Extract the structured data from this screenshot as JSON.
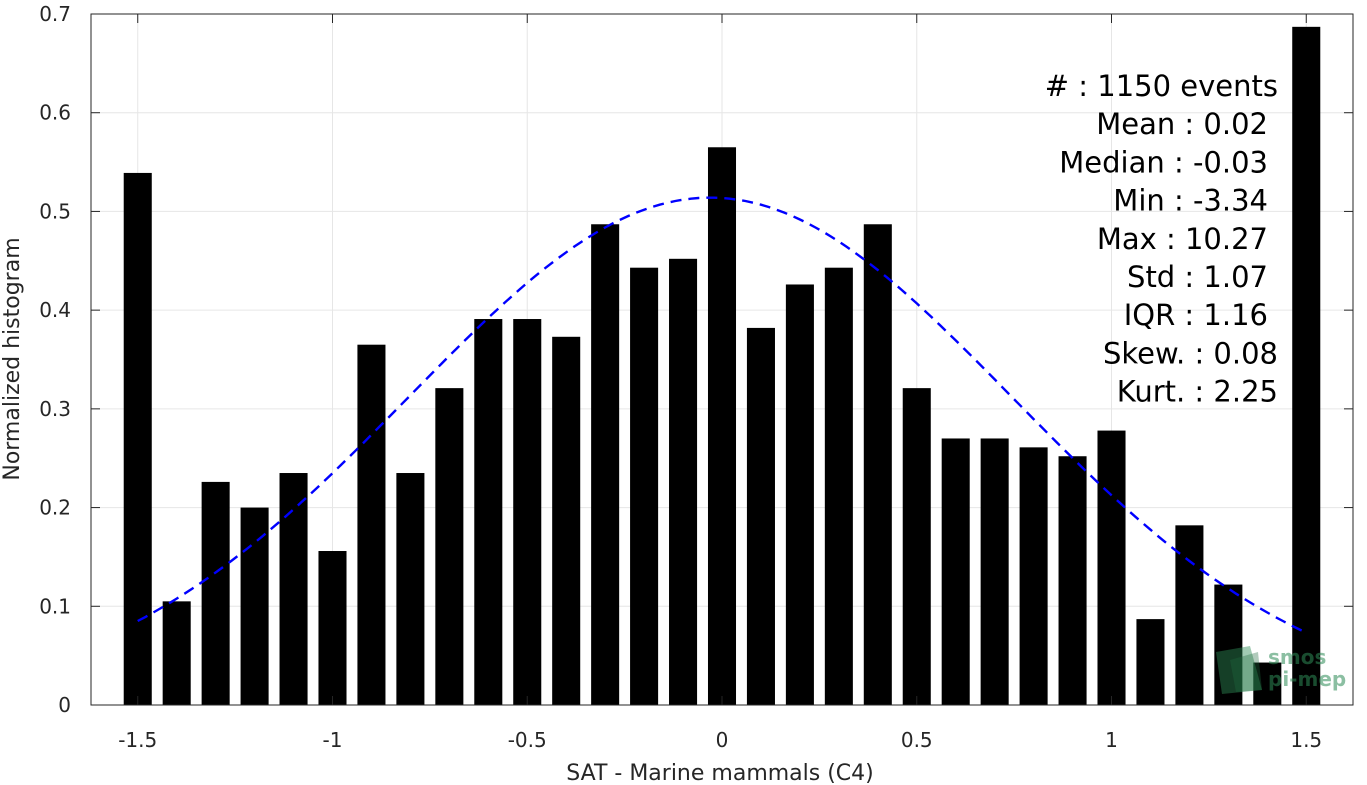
{
  "chart_data": {
    "type": "bar",
    "title": "",
    "xlabel": "SAT - Marine mammals (C4)",
    "ylabel": "Normalized histogram",
    "xlim": [
      -1.62,
      1.62
    ],
    "ylim": [
      0,
      0.7
    ],
    "grid": true,
    "xticks": [
      -1.5,
      -1,
      -0.5,
      0,
      0.5,
      1,
      1.5
    ],
    "xtick_labels": [
      "-1.5",
      "-1",
      "-0.5",
      "0",
      "0.5",
      "1",
      "1.5"
    ],
    "yticks": [
      0,
      0.1,
      0.2,
      0.3,
      0.4,
      0.5,
      0.6,
      0.7
    ],
    "ytick_labels": [
      "0",
      "0.1",
      "0.2",
      "0.3",
      "0.4",
      "0.5",
      "0.6",
      "0.7"
    ],
    "bar_color": "#000000",
    "x": [
      -1.5,
      -1.4,
      -1.3,
      -1.2,
      -1.1,
      -1.0,
      -0.9,
      -0.8,
      -0.7,
      -0.6,
      -0.5,
      -0.4,
      -0.3,
      -0.2,
      -0.1,
      0.0,
      0.1,
      0.2,
      0.3,
      0.4,
      0.5,
      0.6,
      0.7,
      0.8,
      0.9,
      1.0,
      1.1,
      1.2,
      1.3,
      1.4,
      1.5
    ],
    "values": [
      0.539,
      0.105,
      0.226,
      0.2,
      0.235,
      0.156,
      0.365,
      0.235,
      0.321,
      0.391,
      0.391,
      0.373,
      0.487,
      0.443,
      0.452,
      0.565,
      0.382,
      0.426,
      0.443,
      0.487,
      0.321,
      0.27,
      0.27,
      0.261,
      0.252,
      0.278,
      0.087,
      0.182,
      0.122,
      0.043,
      0.687
    ],
    "fit": {
      "type": "normal",
      "mean": -0.03,
      "std": 0.775,
      "peak": 0.514,
      "x_range": [
        -1.5,
        1.5
      ],
      "color": "#0000ff",
      "style": "dashed"
    },
    "annotation_lines": [
      "#  : 1150 events",
      "Mean : 0.02",
      "Median : -0.03",
      "Min : -3.34",
      "Max : 10.27",
      "Std : 1.07",
      "IQR : 1.16",
      "Skew. : 0.08",
      "Kurt. : 2.25"
    ]
  },
  "logo": {
    "line1": "smos",
    "line2": "pi-mep",
    "color": "#2e8b57"
  }
}
